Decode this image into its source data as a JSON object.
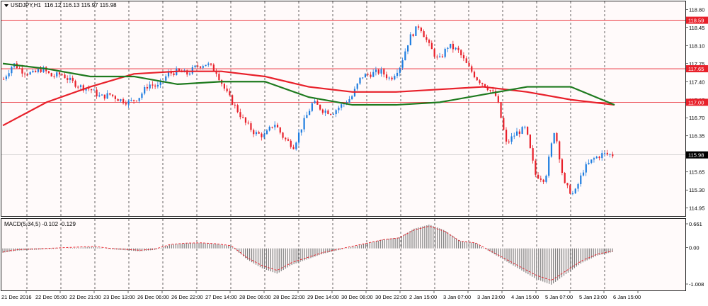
{
  "header": {
    "symbol": "USDJPY,H1",
    "ohlc": "116.12 116.13 115.97 115.98"
  },
  "macd": {
    "label": "MACD(5,34,5) -0.102 -0.129",
    "scale_labels": [
      "0.661",
      "0.00",
      "-1.008"
    ]
  },
  "price_scale": {
    "labels": [
      "118.80",
      "118.45",
      "118.10",
      "117.75",
      "117.40",
      "117.05",
      "116.70",
      "116.35",
      "116.00",
      "115.65",
      "115.30",
      "114.95"
    ],
    "markers": [
      {
        "text": "118.59",
        "color": "#e8202a"
      },
      {
        "text": "117.65",
        "color": "#e8202a"
      },
      {
        "text": "117.00",
        "color": "#e8202a"
      },
      {
        "text": "115.98",
        "color": "#000000"
      }
    ]
  },
  "time_axis": {
    "labels": [
      "21 Dec 2016",
      "22 Dec 05:00",
      "22 Dec 21:00",
      "23 Dec 13:00",
      "26 Dec 06:00",
      "26 Dec 22:00",
      "27 Dec 14:00",
      "28 Dec 06:00",
      "28 Dec 22:00",
      "29 Dec 14:00",
      "30 Dec 06:00",
      "30 Dec 22:00",
      "2 Jan 15:00",
      "3 Jan 07:00",
      "3 Jan 23:00",
      "4 Jan 15:00",
      "5 Jan 07:00",
      "5 Jan 23:00",
      "6 Jan 15:00"
    ]
  },
  "colors": {
    "bull": "#1e7de0",
    "bear": "#e8202a",
    "ma_slow": "#e8202a",
    "ma_fast": "#1e7a1e",
    "grid": "#000000",
    "hline": "#e8202a"
  },
  "chart_data": {
    "type": "candlestick",
    "ylim": [
      114.85,
      118.9
    ],
    "horizontal_levels": [
      118.59,
      117.65,
      117.0
    ],
    "current_price": 115.98,
    "price_path": [
      117.45,
      117.75,
      117.6,
      117.55,
      117.65,
      117.5,
      117.55,
      117.4,
      117.3,
      117.25,
      117.1,
      117.15,
      117.05,
      117.0,
      117.1,
      117.35,
      117.3,
      117.55,
      117.6,
      117.55,
      117.7,
      117.75,
      117.6,
      117.2,
      116.9,
      116.6,
      116.4,
      116.35,
      116.6,
      116.3,
      116.15,
      116.6,
      117.0,
      116.85,
      116.8,
      116.95,
      117.1,
      117.5,
      117.55,
      117.6,
      117.45,
      117.7,
      118.25,
      118.5,
      118.1,
      117.8,
      118.1,
      118.0,
      117.7,
      117.45,
      117.3,
      117.1,
      116.2,
      116.4,
      116.5,
      115.6,
      115.5,
      116.5,
      115.4,
      115.2,
      115.7,
      115.9,
      116.0,
      115.98
    ],
    "ma_slow": [
      116.55,
      117.0,
      117.3,
      117.55,
      117.6,
      117.6,
      117.5,
      117.3,
      117.2,
      117.2,
      117.25,
      117.3,
      117.2,
      117.05,
      116.95
    ],
    "ma_fast": [
      117.75,
      117.65,
      117.5,
      117.5,
      117.35,
      117.4,
      117.4,
      117.1,
      116.95,
      116.95,
      117.0,
      117.15,
      117.3,
      117.3,
      116.95
    ],
    "macd_range": [
      -1.008,
      0.661
    ],
    "macd_hist": [
      -0.12,
      -0.06,
      -0.04,
      -0.02,
      0.0,
      0.02,
      0.04,
      -0.02,
      -0.05,
      -0.08,
      -0.04,
      0.1,
      0.14,
      0.15,
      0.12,
      0.06,
      -0.3,
      -0.55,
      -0.7,
      -0.45,
      -0.3,
      -0.15,
      -0.05,
      0.05,
      0.15,
      0.25,
      0.3,
      0.55,
      0.661,
      0.5,
      0.2,
      0.15,
      -0.1,
      -0.35,
      -0.6,
      -0.85,
      -1.008,
      -0.7,
      -0.4,
      -0.2,
      -0.102
    ]
  }
}
